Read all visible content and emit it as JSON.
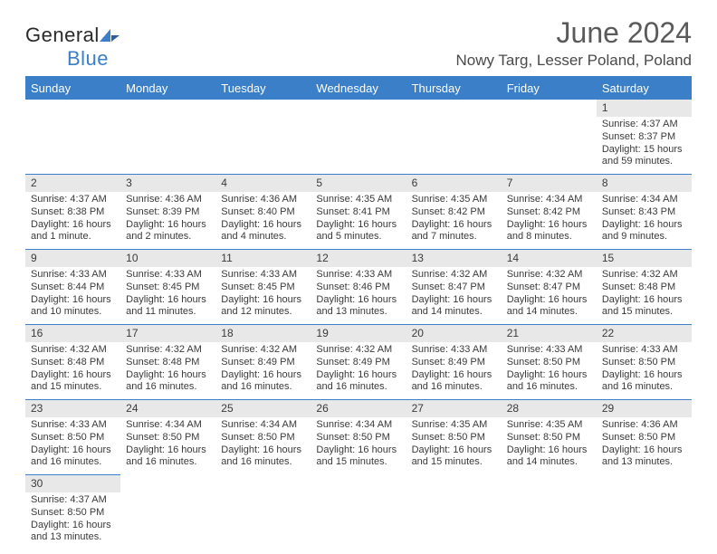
{
  "logo": {
    "brand": "General",
    "brand_accent": "Blue"
  },
  "header": {
    "title": "June 2024",
    "location": "Nowy Targ, Lesser Poland, Poland"
  },
  "colors": {
    "brand_blue": "#3a7fc7",
    "header_bg": "#3a7fc7",
    "daynum_bg": "#e8e8e8",
    "text": "#3a3a3a",
    "background": "#ffffff"
  },
  "daysOfWeek": [
    "Sunday",
    "Monday",
    "Tuesday",
    "Wednesday",
    "Thursday",
    "Friday",
    "Saturday"
  ],
  "weeks": [
    [
      null,
      null,
      null,
      null,
      null,
      null,
      {
        "n": "1",
        "sunrise": "Sunrise: 4:37 AM",
        "sunset": "Sunset: 8:37 PM",
        "day1": "Daylight: 15 hours",
        "day2": "and 59 minutes."
      }
    ],
    [
      {
        "n": "2",
        "sunrise": "Sunrise: 4:37 AM",
        "sunset": "Sunset: 8:38 PM",
        "day1": "Daylight: 16 hours",
        "day2": "and 1 minute."
      },
      {
        "n": "3",
        "sunrise": "Sunrise: 4:36 AM",
        "sunset": "Sunset: 8:39 PM",
        "day1": "Daylight: 16 hours",
        "day2": "and 2 minutes."
      },
      {
        "n": "4",
        "sunrise": "Sunrise: 4:36 AM",
        "sunset": "Sunset: 8:40 PM",
        "day1": "Daylight: 16 hours",
        "day2": "and 4 minutes."
      },
      {
        "n": "5",
        "sunrise": "Sunrise: 4:35 AM",
        "sunset": "Sunset: 8:41 PM",
        "day1": "Daylight: 16 hours",
        "day2": "and 5 minutes."
      },
      {
        "n": "6",
        "sunrise": "Sunrise: 4:35 AM",
        "sunset": "Sunset: 8:42 PM",
        "day1": "Daylight: 16 hours",
        "day2": "and 7 minutes."
      },
      {
        "n": "7",
        "sunrise": "Sunrise: 4:34 AM",
        "sunset": "Sunset: 8:42 PM",
        "day1": "Daylight: 16 hours",
        "day2": "and 8 minutes."
      },
      {
        "n": "8",
        "sunrise": "Sunrise: 4:34 AM",
        "sunset": "Sunset: 8:43 PM",
        "day1": "Daylight: 16 hours",
        "day2": "and 9 minutes."
      }
    ],
    [
      {
        "n": "9",
        "sunrise": "Sunrise: 4:33 AM",
        "sunset": "Sunset: 8:44 PM",
        "day1": "Daylight: 16 hours",
        "day2": "and 10 minutes."
      },
      {
        "n": "10",
        "sunrise": "Sunrise: 4:33 AM",
        "sunset": "Sunset: 8:45 PM",
        "day1": "Daylight: 16 hours",
        "day2": "and 11 minutes."
      },
      {
        "n": "11",
        "sunrise": "Sunrise: 4:33 AM",
        "sunset": "Sunset: 8:45 PM",
        "day1": "Daylight: 16 hours",
        "day2": "and 12 minutes."
      },
      {
        "n": "12",
        "sunrise": "Sunrise: 4:33 AM",
        "sunset": "Sunset: 8:46 PM",
        "day1": "Daylight: 16 hours",
        "day2": "and 13 minutes."
      },
      {
        "n": "13",
        "sunrise": "Sunrise: 4:32 AM",
        "sunset": "Sunset: 8:47 PM",
        "day1": "Daylight: 16 hours",
        "day2": "and 14 minutes."
      },
      {
        "n": "14",
        "sunrise": "Sunrise: 4:32 AM",
        "sunset": "Sunset: 8:47 PM",
        "day1": "Daylight: 16 hours",
        "day2": "and 14 minutes."
      },
      {
        "n": "15",
        "sunrise": "Sunrise: 4:32 AM",
        "sunset": "Sunset: 8:48 PM",
        "day1": "Daylight: 16 hours",
        "day2": "and 15 minutes."
      }
    ],
    [
      {
        "n": "16",
        "sunrise": "Sunrise: 4:32 AM",
        "sunset": "Sunset: 8:48 PM",
        "day1": "Daylight: 16 hours",
        "day2": "and 15 minutes."
      },
      {
        "n": "17",
        "sunrise": "Sunrise: 4:32 AM",
        "sunset": "Sunset: 8:48 PM",
        "day1": "Daylight: 16 hours",
        "day2": "and 16 minutes."
      },
      {
        "n": "18",
        "sunrise": "Sunrise: 4:32 AM",
        "sunset": "Sunset: 8:49 PM",
        "day1": "Daylight: 16 hours",
        "day2": "and 16 minutes."
      },
      {
        "n": "19",
        "sunrise": "Sunrise: 4:32 AM",
        "sunset": "Sunset: 8:49 PM",
        "day1": "Daylight: 16 hours",
        "day2": "and 16 minutes."
      },
      {
        "n": "20",
        "sunrise": "Sunrise: 4:33 AM",
        "sunset": "Sunset: 8:49 PM",
        "day1": "Daylight: 16 hours",
        "day2": "and 16 minutes."
      },
      {
        "n": "21",
        "sunrise": "Sunrise: 4:33 AM",
        "sunset": "Sunset: 8:50 PM",
        "day1": "Daylight: 16 hours",
        "day2": "and 16 minutes."
      },
      {
        "n": "22",
        "sunrise": "Sunrise: 4:33 AM",
        "sunset": "Sunset: 8:50 PM",
        "day1": "Daylight: 16 hours",
        "day2": "and 16 minutes."
      }
    ],
    [
      {
        "n": "23",
        "sunrise": "Sunrise: 4:33 AM",
        "sunset": "Sunset: 8:50 PM",
        "day1": "Daylight: 16 hours",
        "day2": "and 16 minutes."
      },
      {
        "n": "24",
        "sunrise": "Sunrise: 4:34 AM",
        "sunset": "Sunset: 8:50 PM",
        "day1": "Daylight: 16 hours",
        "day2": "and 16 minutes."
      },
      {
        "n": "25",
        "sunrise": "Sunrise: 4:34 AM",
        "sunset": "Sunset: 8:50 PM",
        "day1": "Daylight: 16 hours",
        "day2": "and 16 minutes."
      },
      {
        "n": "26",
        "sunrise": "Sunrise: 4:34 AM",
        "sunset": "Sunset: 8:50 PM",
        "day1": "Daylight: 16 hours",
        "day2": "and 15 minutes."
      },
      {
        "n": "27",
        "sunrise": "Sunrise: 4:35 AM",
        "sunset": "Sunset: 8:50 PM",
        "day1": "Daylight: 16 hours",
        "day2": "and 15 minutes."
      },
      {
        "n": "28",
        "sunrise": "Sunrise: 4:35 AM",
        "sunset": "Sunset: 8:50 PM",
        "day1": "Daylight: 16 hours",
        "day2": "and 14 minutes."
      },
      {
        "n": "29",
        "sunrise": "Sunrise: 4:36 AM",
        "sunset": "Sunset: 8:50 PM",
        "day1": "Daylight: 16 hours",
        "day2": "and 13 minutes."
      }
    ],
    [
      {
        "n": "30",
        "sunrise": "Sunrise: 4:37 AM",
        "sunset": "Sunset: 8:50 PM",
        "day1": "Daylight: 16 hours",
        "day2": "and 13 minutes."
      },
      null,
      null,
      null,
      null,
      null,
      null
    ]
  ]
}
